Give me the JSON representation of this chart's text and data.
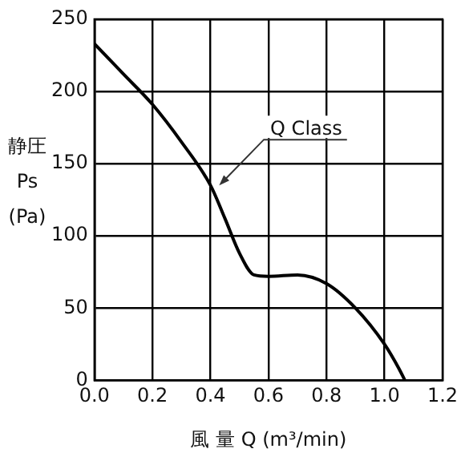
{
  "chart_data": {
    "type": "line",
    "xlabel": "風 量 Q (m³/min)",
    "ylabel": "静圧 Ps (Pa)",
    "x": [
      0,
      0.1,
      0.2,
      0.3,
      0.4,
      0.45,
      0.5,
      0.55,
      0.6,
      0.7,
      0.8,
      0.9,
      1.0,
      1.05,
      1.07
    ],
    "series": [
      {
        "color": "#000000",
        "values": [
          233,
          212,
          191,
          165,
          135,
          112,
          88,
          73,
          72,
          73,
          67,
          50,
          25,
          8,
          0
        ]
      }
    ],
    "xlim": [
      0,
      1.2
    ],
    "xticks": [
      {
        "value": 0,
        "label": "0.0"
      },
      0.2,
      0.4,
      0.6,
      0.8,
      {
        "value": 1,
        "label": "1.0"
      },
      1.2
    ],
    "ylim": [
      0,
      250
    ],
    "yticks": [
      0,
      50,
      100,
      150,
      200,
      250
    ],
    "grid": true,
    "marker": "none",
    "line_style": "solid",
    "annotations": [
      {
        "text": "Q Class",
        "x": 0.43,
        "y": 135
      }
    ]
  }
}
